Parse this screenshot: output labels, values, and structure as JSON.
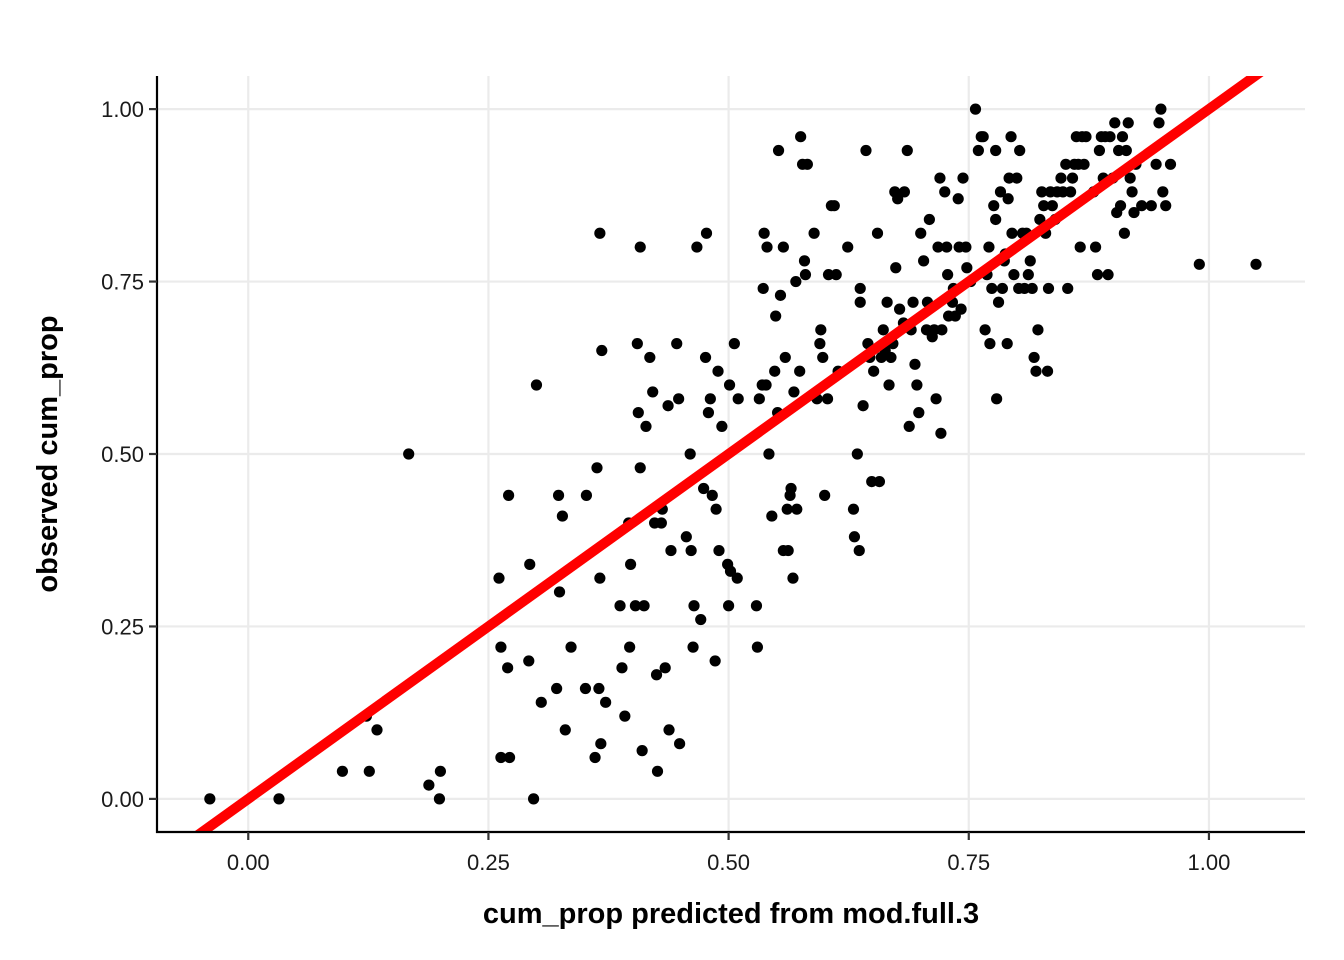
{
  "chart_data": {
    "type": "scatter",
    "xlabel": "cum_prop predicted from mod.full.3",
    "ylabel": "observed cum_prop",
    "xlim": [
      -0.095,
      1.1
    ],
    "ylim": [
      -0.048,
      1.048
    ],
    "x_ticks": [
      0.0,
      0.25,
      0.5,
      0.75,
      1.0
    ],
    "x_tick_labels": [
      "0.00",
      "0.25",
      "0.50",
      "0.75",
      "1.00"
    ],
    "y_ticks": [
      0.0,
      0.25,
      0.5,
      0.75,
      1.0
    ],
    "y_tick_labels": [
      "0.00",
      "0.25",
      "0.50",
      "0.75",
      "1.00"
    ],
    "grid": true,
    "legend": "none",
    "colors": {
      "points": "#000000",
      "line": "#ff0000",
      "grid": "#ebebeb"
    },
    "reference_line": {
      "intercept": 0,
      "slope": 1
    },
    "points": [
      [
        -0.04,
        0.0
      ],
      [
        0.032,
        0.0
      ],
      [
        0.098,
        0.04
      ],
      [
        0.126,
        0.04
      ],
      [
        0.123,
        0.12
      ],
      [
        0.134,
        0.1
      ],
      [
        0.167,
        0.5
      ],
      [
        0.188,
        0.02
      ],
      [
        0.199,
        0.0
      ],
      [
        0.2,
        0.04
      ],
      [
        0.261,
        0.32
      ],
      [
        0.263,
        0.22
      ],
      [
        0.263,
        0.06
      ],
      [
        0.272,
        0.06
      ],
      [
        0.27,
        0.19
      ],
      [
        0.271,
        0.44
      ],
      [
        0.292,
        0.2
      ],
      [
        0.293,
        0.34
      ],
      [
        0.297,
        0.0
      ],
      [
        0.3,
        0.6
      ],
      [
        0.305,
        0.14
      ],
      [
        0.321,
        0.16
      ],
      [
        0.323,
        0.44
      ],
      [
        0.324,
        0.3
      ],
      [
        0.327,
        0.41
      ],
      [
        0.33,
        0.1
      ],
      [
        0.336,
        0.22
      ],
      [
        0.351,
        0.16
      ],
      [
        0.352,
        0.44
      ],
      [
        0.361,
        0.06
      ],
      [
        0.363,
        0.48
      ],
      [
        0.365,
        0.16
      ],
      [
        0.366,
        0.32
      ],
      [
        0.366,
        0.82
      ],
      [
        0.367,
        0.08
      ],
      [
        0.368,
        0.65
      ],
      [
        0.372,
        0.14
      ],
      [
        0.387,
        0.28
      ],
      [
        0.389,
        0.19
      ],
      [
        0.392,
        0.12
      ],
      [
        0.396,
        0.4
      ],
      [
        0.397,
        0.22
      ],
      [
        0.398,
        0.34
      ],
      [
        0.403,
        0.28
      ],
      [
        0.405,
        0.66
      ],
      [
        0.406,
        0.56
      ],
      [
        0.408,
        0.48
      ],
      [
        0.408,
        0.8
      ],
      [
        0.41,
        0.07
      ],
      [
        0.412,
        0.28
      ],
      [
        0.414,
        0.54
      ],
      [
        0.418,
        0.64
      ],
      [
        0.421,
        0.59
      ],
      [
        0.423,
        0.4
      ],
      [
        0.425,
        0.18
      ],
      [
        0.426,
        0.04
      ],
      [
        0.43,
        0.4
      ],
      [
        0.431,
        0.42
      ],
      [
        0.434,
        0.19
      ],
      [
        0.437,
        0.57
      ],
      [
        0.438,
        0.1
      ],
      [
        0.44,
        0.36
      ],
      [
        0.446,
        0.66
      ],
      [
        0.448,
        0.58
      ],
      [
        0.449,
        0.08
      ],
      [
        0.456,
        0.38
      ],
      [
        0.46,
        0.5
      ],
      [
        0.461,
        0.36
      ],
      [
        0.463,
        0.22
      ],
      [
        0.464,
        0.28
      ],
      [
        0.467,
        0.8
      ],
      [
        0.471,
        0.26
      ],
      [
        0.474,
        0.45
      ],
      [
        0.476,
        0.64
      ],
      [
        0.477,
        0.82
      ],
      [
        0.479,
        0.56
      ],
      [
        0.481,
        0.58
      ],
      [
        0.483,
        0.44
      ],
      [
        0.486,
        0.2
      ],
      [
        0.487,
        0.42
      ],
      [
        0.489,
        0.62
      ],
      [
        0.49,
        0.36
      ],
      [
        0.493,
        0.54
      ],
      [
        0.499,
        0.34
      ],
      [
        0.5,
        0.28
      ],
      [
        0.501,
        0.6
      ],
      [
        0.502,
        0.33
      ],
      [
        0.506,
        0.66
      ],
      [
        0.509,
        0.32
      ],
      [
        0.51,
        0.58
      ],
      [
        0.529,
        0.28
      ],
      [
        0.53,
        0.22
      ],
      [
        0.532,
        0.58
      ],
      [
        0.535,
        0.6
      ],
      [
        0.536,
        0.74
      ],
      [
        0.537,
        0.82
      ],
      [
        0.539,
        0.6
      ],
      [
        0.54,
        0.8
      ],
      [
        0.542,
        0.5
      ],
      [
        0.545,
        0.41
      ],
      [
        0.548,
        0.62
      ],
      [
        0.549,
        0.7
      ],
      [
        0.551,
        0.56
      ],
      [
        0.552,
        0.94
      ],
      [
        0.554,
        0.73
      ],
      [
        0.557,
        0.36
      ],
      [
        0.557,
        0.8
      ],
      [
        0.559,
        0.64
      ],
      [
        0.561,
        0.42
      ],
      [
        0.562,
        0.36
      ],
      [
        0.564,
        0.44
      ],
      [
        0.565,
        0.45
      ],
      [
        0.567,
        0.32
      ],
      [
        0.568,
        0.59
      ],
      [
        0.57,
        0.75
      ],
      [
        0.571,
        0.42
      ],
      [
        0.574,
        0.62
      ],
      [
        0.575,
        0.96
      ],
      [
        0.577,
        0.92
      ],
      [
        0.579,
        0.78
      ],
      [
        0.582,
        0.92
      ],
      [
        0.58,
        0.76
      ],
      [
        0.589,
        0.82
      ],
      [
        0.592,
        0.58
      ],
      [
        0.595,
        0.66
      ],
      [
        0.596,
        0.68
      ],
      [
        0.598,
        0.64
      ],
      [
        0.6,
        0.44
      ],
      [
        0.603,
        0.58
      ],
      [
        0.607,
        0.86
      ],
      [
        0.61,
        0.86
      ],
      [
        0.604,
        0.76
      ],
      [
        0.612,
        0.76
      ],
      [
        0.614,
        0.62
      ],
      [
        0.624,
        0.8
      ],
      [
        0.63,
        0.42
      ],
      [
        0.631,
        0.38
      ],
      [
        0.634,
        0.5
      ],
      [
        0.636,
        0.36
      ],
      [
        0.637,
        0.74
      ],
      [
        0.637,
        0.72
      ],
      [
        0.64,
        0.57
      ],
      [
        0.643,
        0.94
      ],
      [
        0.645,
        0.66
      ],
      [
        0.647,
        0.64
      ],
      [
        0.649,
        0.46
      ],
      [
        0.651,
        0.62
      ],
      [
        0.655,
        0.82
      ],
      [
        0.657,
        0.46
      ],
      [
        0.659,
        0.64
      ],
      [
        0.661,
        0.68
      ],
      [
        0.663,
        0.65
      ],
      [
        0.665,
        0.72
      ],
      [
        0.667,
        0.6
      ],
      [
        0.669,
        0.64
      ],
      [
        0.671,
        0.66
      ],
      [
        0.673,
        0.88
      ],
      [
        0.674,
        0.77
      ],
      [
        0.676,
        0.87
      ],
      [
        0.678,
        0.71
      ],
      [
        0.682,
        0.69
      ],
      [
        0.683,
        0.88
      ],
      [
        0.686,
        0.94
      ],
      [
        0.688,
        0.54
      ],
      [
        0.69,
        0.68
      ],
      [
        0.692,
        0.72
      ],
      [
        0.694,
        0.63
      ],
      [
        0.696,
        0.6
      ],
      [
        0.698,
        0.56
      ],
      [
        0.7,
        0.82
      ],
      [
        0.703,
        0.78
      ],
      [
        0.706,
        0.68
      ],
      [
        0.707,
        0.72
      ],
      [
        0.709,
        0.84
      ],
      [
        0.712,
        0.67
      ],
      [
        0.714,
        0.68
      ],
      [
        0.716,
        0.58
      ],
      [
        0.718,
        0.8
      ],
      [
        0.72,
        0.9
      ],
      [
        0.721,
        0.53
      ],
      [
        0.722,
        0.68
      ],
      [
        0.725,
        0.88
      ],
      [
        0.727,
        0.8
      ],
      [
        0.728,
        0.76
      ],
      [
        0.729,
        0.7
      ],
      [
        0.733,
        0.72
      ],
      [
        0.734,
        0.74
      ],
      [
        0.736,
        0.7
      ],
      [
        0.739,
        0.87
      ],
      [
        0.74,
        0.8
      ],
      [
        0.742,
        0.71
      ],
      [
        0.744,
        0.9
      ],
      [
        0.747,
        0.8
      ],
      [
        0.748,
        0.77
      ],
      [
        0.752,
        0.75
      ],
      [
        0.757,
        1.0
      ],
      [
        0.76,
        0.94
      ],
      [
        0.763,
        0.96
      ],
      [
        0.765,
        0.96
      ],
      [
        0.767,
        0.68
      ],
      [
        0.769,
        0.76
      ],
      [
        0.771,
        0.8
      ],
      [
        0.772,
        0.66
      ],
      [
        0.774,
        0.74
      ],
      [
        0.776,
        0.86
      ],
      [
        0.778,
        0.94
      ],
      [
        0.778,
        0.84
      ],
      [
        0.779,
        0.58
      ],
      [
        0.781,
        0.72
      ],
      [
        0.783,
        0.88
      ],
      [
        0.785,
        0.74
      ],
      [
        0.787,
        0.78
      ],
      [
        0.788,
        0.79
      ],
      [
        0.79,
        0.66
      ],
      [
        0.791,
        0.87
      ],
      [
        0.792,
        0.9
      ],
      [
        0.794,
        0.96
      ],
      [
        0.795,
        0.82
      ],
      [
        0.797,
        0.76
      ],
      [
        0.8,
        0.9
      ],
      [
        0.802,
        0.74
      ],
      [
        0.803,
        0.94
      ],
      [
        0.806,
        0.82
      ],
      [
        0.808,
        0.74
      ],
      [
        0.81,
        0.82
      ],
      [
        0.812,
        0.76
      ],
      [
        0.814,
        0.78
      ],
      [
        0.816,
        0.74
      ],
      [
        0.818,
        0.64
      ],
      [
        0.82,
        0.62
      ],
      [
        0.822,
        0.68
      ],
      [
        0.824,
        0.84
      ],
      [
        0.826,
        0.88
      ],
      [
        0.828,
        0.86
      ],
      [
        0.83,
        0.82
      ],
      [
        0.832,
        0.62
      ],
      [
        0.833,
        0.74
      ],
      [
        0.835,
        0.88
      ],
      [
        0.837,
        0.86
      ],
      [
        0.84,
        0.84
      ],
      [
        0.842,
        0.88
      ],
      [
        0.846,
        0.9
      ],
      [
        0.848,
        0.88
      ],
      [
        0.851,
        0.92
      ],
      [
        0.853,
        0.74
      ],
      [
        0.856,
        0.88
      ],
      [
        0.858,
        0.9
      ],
      [
        0.86,
        0.92
      ],
      [
        0.862,
        0.96
      ],
      [
        0.864,
        0.92
      ],
      [
        0.866,
        0.8
      ],
      [
        0.868,
        0.96
      ],
      [
        0.87,
        0.92
      ],
      [
        0.872,
        0.96
      ],
      [
        0.88,
        0.88
      ],
      [
        0.882,
        0.8
      ],
      [
        0.884,
        0.76
      ],
      [
        0.886,
        0.94
      ],
      [
        0.888,
        0.96
      ],
      [
        0.89,
        0.9
      ],
      [
        0.892,
        0.96
      ],
      [
        0.895,
        0.76
      ],
      [
        0.897,
        0.96
      ],
      [
        0.9,
        0.9
      ],
      [
        0.902,
        0.98
      ],
      [
        0.904,
        0.85
      ],
      [
        0.906,
        0.94
      ],
      [
        0.908,
        0.86
      ],
      [
        0.91,
        0.96
      ],
      [
        0.912,
        0.82
      ],
      [
        0.914,
        0.94
      ],
      [
        0.916,
        0.98
      ],
      [
        0.918,
        0.9
      ],
      [
        0.92,
        0.88
      ],
      [
        0.922,
        0.85
      ],
      [
        0.924,
        0.92
      ],
      [
        0.93,
        0.86
      ],
      [
        0.94,
        0.86
      ],
      [
        0.945,
        0.92
      ],
      [
        0.948,
        0.98
      ],
      [
        0.95,
        1.0
      ],
      [
        0.952,
        0.88
      ],
      [
        0.955,
        0.86
      ],
      [
        0.96,
        0.92
      ],
      [
        0.99,
        0.775
      ],
      [
        1.049,
        0.775
      ]
    ]
  }
}
